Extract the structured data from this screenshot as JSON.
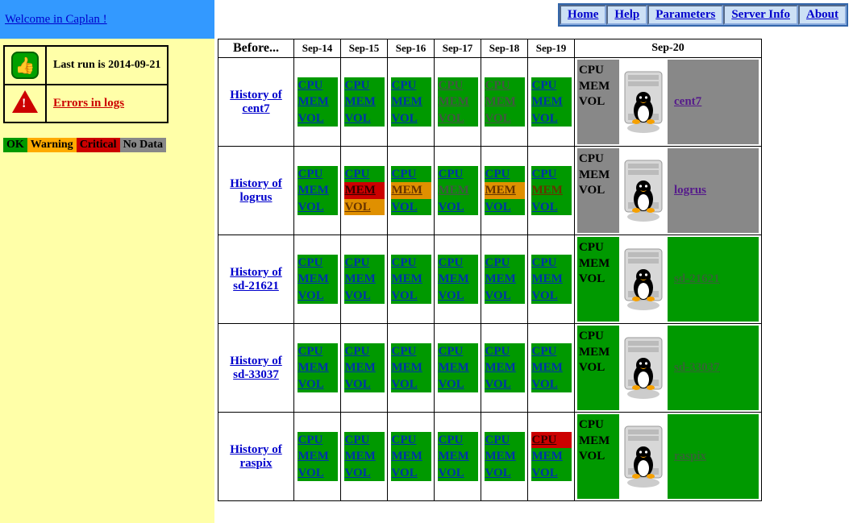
{
  "welcome": "Welcome in Caplan !",
  "nav": [
    "Home",
    "Help",
    "Parameters",
    "Server Info",
    "About"
  ],
  "status": {
    "last_run_label": "Last run is 2014-09-21",
    "errors_label": "Errors in logs"
  },
  "legend": {
    "ok": "OK",
    "warn": "Warning",
    "crit": "Critical",
    "nodata": "No Data"
  },
  "columns": {
    "before": "Before...",
    "days": [
      "Sep-14",
      "Sep-15",
      "Sep-16",
      "Sep-17",
      "Sep-18",
      "Sep-19"
    ],
    "last": "Sep-20"
  },
  "metrics": [
    "CPU",
    "MEM",
    "VOL"
  ],
  "colors": {
    "ok": "#009900",
    "warn": "#e09000",
    "crit": "#cc0000",
    "nodata": "#888888",
    "link": "#0033aa",
    "visited": "#551a8b"
  },
  "hosts": [
    {
      "name": "cent7",
      "history_label": "History of cent7",
      "last_bg": "nodata",
      "label_bg": "gray",
      "days": [
        [
          [
            "ok",
            "link"
          ],
          [
            "ok",
            "link"
          ],
          [
            "ok",
            "link"
          ]
        ],
        [
          [
            "ok",
            "link"
          ],
          [
            "ok",
            "link"
          ],
          [
            "ok",
            "link"
          ]
        ],
        [
          [
            "ok",
            "link"
          ],
          [
            "ok",
            "link"
          ],
          [
            "ok",
            "link"
          ]
        ],
        [
          [
            "ok",
            "dim"
          ],
          [
            "ok",
            "dim"
          ],
          [
            "ok",
            "dim"
          ]
        ],
        [
          [
            "ok",
            "dim"
          ],
          [
            "ok",
            "dim"
          ],
          [
            "ok",
            "dim"
          ]
        ],
        [
          [
            "ok",
            "link"
          ],
          [
            "ok",
            "link"
          ],
          [
            "ok",
            "link"
          ]
        ]
      ]
    },
    {
      "name": "logrus",
      "history_label": "History of logrus",
      "last_bg": "nodata",
      "label_bg": "gray",
      "days": [
        [
          [
            "ok",
            "link"
          ],
          [
            "ok",
            "link"
          ],
          [
            "ok",
            "link"
          ]
        ],
        [
          [
            "ok",
            "link"
          ],
          [
            "crit",
            "crit"
          ],
          [
            "warn",
            "warn"
          ]
        ],
        [
          [
            "ok",
            "link"
          ],
          [
            "warn",
            "warn"
          ],
          [
            "ok",
            "link"
          ]
        ],
        [
          [
            "ok",
            "link"
          ],
          [
            "ok",
            "dim"
          ],
          [
            "ok",
            "link"
          ]
        ],
        [
          [
            "ok",
            "link"
          ],
          [
            "warn",
            "warn"
          ],
          [
            "ok",
            "link"
          ]
        ],
        [
          [
            "ok",
            "link"
          ],
          [
            "ok",
            "warn"
          ],
          [
            "ok",
            "link"
          ]
        ]
      ]
    },
    {
      "name": "sd-21621",
      "history_label": "History of sd-21621",
      "last_bg": "ok",
      "label_bg": "green",
      "days": [
        [
          [
            "ok",
            "link"
          ],
          [
            "ok",
            "link"
          ],
          [
            "ok",
            "link"
          ]
        ],
        [
          [
            "ok",
            "link"
          ],
          [
            "ok",
            "link"
          ],
          [
            "ok",
            "link"
          ]
        ],
        [
          [
            "ok",
            "link"
          ],
          [
            "ok",
            "link"
          ],
          [
            "ok",
            "link"
          ]
        ],
        [
          [
            "ok",
            "link"
          ],
          [
            "ok",
            "link"
          ],
          [
            "ok",
            "link"
          ]
        ],
        [
          [
            "ok",
            "link"
          ],
          [
            "ok",
            "link"
          ],
          [
            "ok",
            "link"
          ]
        ],
        [
          [
            "ok",
            "link"
          ],
          [
            "ok",
            "link"
          ],
          [
            "ok",
            "link"
          ]
        ]
      ]
    },
    {
      "name": "sd-33037",
      "history_label": "History of sd-33037",
      "last_bg": "ok",
      "label_bg": "green",
      "days": [
        [
          [
            "ok",
            "link"
          ],
          [
            "ok",
            "link"
          ],
          [
            "ok",
            "link"
          ]
        ],
        [
          [
            "ok",
            "link"
          ],
          [
            "ok",
            "link"
          ],
          [
            "ok",
            "link"
          ]
        ],
        [
          [
            "ok",
            "link"
          ],
          [
            "ok",
            "link"
          ],
          [
            "ok",
            "link"
          ]
        ],
        [
          [
            "ok",
            "link"
          ],
          [
            "ok",
            "link"
          ],
          [
            "ok",
            "link"
          ]
        ],
        [
          [
            "ok",
            "link"
          ],
          [
            "ok",
            "link"
          ],
          [
            "ok",
            "link"
          ]
        ],
        [
          [
            "ok",
            "link"
          ],
          [
            "ok",
            "link"
          ],
          [
            "ok",
            "link"
          ]
        ]
      ]
    },
    {
      "name": "raspix",
      "history_label": "History of raspix",
      "last_bg": "ok",
      "label_bg": "green",
      "days": [
        [
          [
            "ok",
            "link"
          ],
          [
            "ok",
            "link"
          ],
          [
            "ok",
            "link"
          ]
        ],
        [
          [
            "ok",
            "link"
          ],
          [
            "ok",
            "link"
          ],
          [
            "ok",
            "link"
          ]
        ],
        [
          [
            "ok",
            "link"
          ],
          [
            "ok",
            "link"
          ],
          [
            "ok",
            "link"
          ]
        ],
        [
          [
            "ok",
            "link"
          ],
          [
            "ok",
            "link"
          ],
          [
            "ok",
            "link"
          ]
        ],
        [
          [
            "ok",
            "link"
          ],
          [
            "ok",
            "link"
          ],
          [
            "ok",
            "link"
          ]
        ],
        [
          [
            "crit",
            "crit"
          ],
          [
            "ok",
            "link"
          ],
          [
            "ok",
            "link"
          ]
        ]
      ]
    }
  ]
}
